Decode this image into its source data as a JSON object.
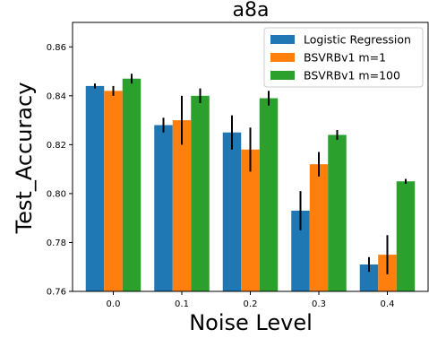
{
  "chart_data": {
    "type": "bar",
    "title": "a8a",
    "xlabel": "Noise Level",
    "ylabel": "Test_Accuracy",
    "categories": [
      "0.0",
      "0.1",
      "0.2",
      "0.3",
      "0.4"
    ],
    "ylim": [
      0.76,
      0.87
    ],
    "yticks": [
      "0.76",
      "0.78",
      "0.80",
      "0.82",
      "0.84",
      "0.86"
    ],
    "legend_position": "top-right",
    "grid": false,
    "series": [
      {
        "name": "Logistic Regression",
        "color": "#1f77b4",
        "values": [
          0.844,
          0.828,
          0.825,
          0.793,
          0.771
        ],
        "errors": [
          0.001,
          0.003,
          0.007,
          0.008,
          0.003
        ]
      },
      {
        "name": "BSVRBv1 m=1",
        "color": "#ff7f0e",
        "values": [
          0.842,
          0.83,
          0.818,
          0.812,
          0.775
        ],
        "errors": [
          0.002,
          0.01,
          0.009,
          0.005,
          0.008
        ]
      },
      {
        "name": "BSVRBv1 m=100",
        "color": "#2ca02c",
        "values": [
          0.847,
          0.84,
          0.839,
          0.824,
          0.805
        ],
        "errors": [
          0.002,
          0.003,
          0.003,
          0.002,
          0.001
        ]
      }
    ]
  }
}
